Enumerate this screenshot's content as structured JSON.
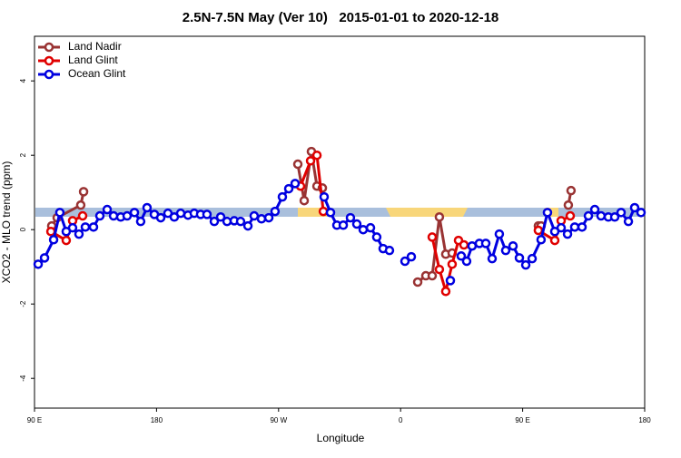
{
  "chart_data": {
    "type": "line",
    "title": "2.5N-7.5N May (Ver 10)   2015-01-01 to 2020-12-18",
    "x_label": "Longitude",
    "y_label": "XCO2 - MLO trend (ppm)",
    "xlim": [
      90,
      540
    ],
    "ylim": [
      -4.8,
      5.2
    ],
    "xticks": [
      {
        "value": 90,
        "label": "90 E"
      },
      {
        "value": 180,
        "label": "180"
      },
      {
        "value": 270,
        "label": "90 W"
      },
      {
        "value": 360,
        "label": "0"
      },
      {
        "value": 450,
        "label": "90 E"
      },
      {
        "value": 540,
        "label": "180"
      }
    ],
    "yticks": [
      -4,
      -2,
      0,
      2,
      4
    ],
    "legend": "top-left",
    "series": [
      {
        "name": "Land Nadir",
        "color": "#993333",
        "x": [
          102.7,
          106.7,
          124.1,
          126.2,
          null,
          284.2,
          288.9,
          294.2,
          298.3,
          302.3,
          null,
          372.6,
          378.6,
          383.3,
          388.6,
          393.3,
          398.0,
          null,
          461.6,
          463.6,
          null,
          483.7,
          485.7
        ],
        "values": [
          0.1,
          0.32,
          0.66,
          1.02,
          null,
          1.76,
          0.78,
          2.1,
          1.17,
          1.12,
          null,
          -1.41,
          -1.24,
          -1.24,
          0.34,
          -0.66,
          -0.63,
          null,
          0.1,
          0.1,
          null,
          0.66,
          1.05
        ]
      },
      {
        "name": "Land Glint",
        "color": "#e00000",
        "x": [
          102.1,
          113.4,
          118.1,
          125.5,
          null,
          286.2,
          293.6,
          298.3,
          303.0,
          null,
          383.3,
          388.6,
          393.3,
          398.0,
          402.7,
          406.7,
          null,
          461.6,
          473.7,
          478.4,
          485.1
        ],
        "values": [
          -0.05,
          -0.29,
          0.24,
          0.37,
          null,
          1.17,
          1.85,
          2.0,
          0.49,
          null,
          -0.2,
          -1.07,
          -1.66,
          -0.93,
          -0.29,
          -0.41,
          null,
          -0.02,
          -0.29,
          0.24,
          0.37
        ]
      },
      {
        "name": "Ocean Glint",
        "color": "#0000e0",
        "x": [
          92.7,
          97.4,
          104.1,
          108.7,
          113.4,
          118.1,
          122.8,
          127.5,
          133.5,
          138.2,
          143.6,
          148.3,
          153.6,
          158.3,
          163.7,
          168.3,
          173.0,
          178.4,
          183.1,
          188.4,
          193.1,
          197.8,
          203.2,
          207.8,
          212.5,
          217.2,
          222.6,
          227.3,
          232.0,
          237.3,
          242.0,
          247.4,
          252.0,
          257.4,
          262.8,
          267.4,
          272.8,
          277.5,
          282.2,
          null,
          303.6,
          308.3,
          313.0,
          317.7,
          323.0,
          327.7,
          332.4,
          337.8,
          342.4,
          347.1,
          351.8,
          null,
          363.2,
          367.9,
          null,
          396.7,
          null,
          404.7,
          408.7,
          412.7,
          418.1,
          422.8,
          427.5,
          432.8,
          437.5,
          442.9,
          447.6,
          452.3,
          457.0,
          463.6,
          468.3,
          473.7,
          478.4,
          483.1,
          488.4,
          493.8,
          498.5,
          503.2,
          507.8,
          513.2,
          517.9,
          522.6,
          528.0,
          532.6,
          537.3
        ],
        "values": [
          -0.93,
          -0.76,
          -0.27,
          0.46,
          -0.05,
          0.05,
          -0.12,
          0.07,
          0.07,
          0.37,
          0.54,
          0.37,
          0.34,
          0.37,
          0.46,
          0.22,
          0.59,
          0.41,
          0.32,
          0.44,
          0.34,
          0.44,
          0.39,
          0.44,
          0.41,
          0.41,
          0.22,
          0.34,
          0.22,
          0.24,
          0.22,
          0.1,
          0.37,
          0.29,
          0.32,
          0.49,
          0.88,
          1.1,
          1.24,
          null,
          0.88,
          0.46,
          0.12,
          0.12,
          0.32,
          0.15,
          0.0,
          0.05,
          -0.2,
          -0.51,
          -0.56,
          null,
          -0.85,
          -0.73,
          null,
          -1.37,
          null,
          -0.71,
          -0.85,
          -0.44,
          -0.37,
          -0.37,
          -0.78,
          -0.12,
          -0.56,
          -0.44,
          -0.76,
          -0.95,
          -0.78,
          -0.27,
          0.46,
          -0.05,
          0.05,
          -0.12,
          0.07,
          0.07,
          0.37,
          0.54,
          0.37,
          0.34,
          0.34,
          0.46,
          0.22,
          0.59,
          0.46
        ]
      }
    ]
  }
}
